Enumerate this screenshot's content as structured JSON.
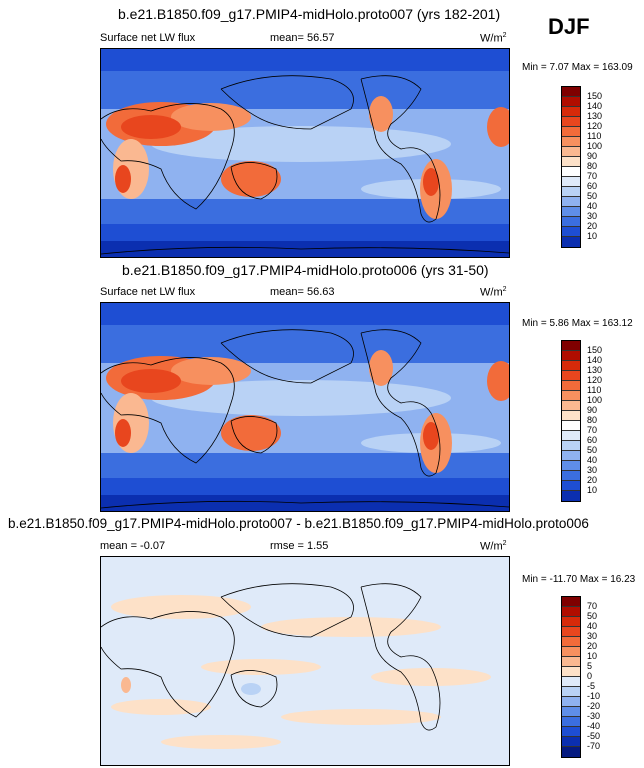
{
  "season": "DJF",
  "panels": [
    {
      "title": "b.e21.B1850.f09_g17.PMIP4-midHolo.proto007 (yrs 182-201)",
      "variable": "Surface net LW flux",
      "mean_label": "mean=  56.57",
      "units": "W/m",
      "units_sup": "2",
      "minmax": "Min =  7.07 Max = 163.09",
      "colorbar": {
        "ticks": [
          "150",
          "140",
          "130",
          "120",
          "110",
          "100",
          "90",
          "80",
          "70",
          "60",
          "50",
          "40",
          "30",
          "20",
          "10"
        ],
        "colors": [
          "#7f0000",
          "#b00d00",
          "#d62a0a",
          "#e8461e",
          "#f26b3a",
          "#f7905f",
          "#fab891",
          "#fde1c8",
          "#ffffff",
          "#dfeaf9",
          "#b9d2f5",
          "#8fb2f0",
          "#5f8ee8",
          "#3b6edf",
          "#1e4ed3",
          "#0b2fb0"
        ]
      }
    },
    {
      "title": "b.e21.B1850.f09_g17.PMIP4-midHolo.proto006 (yrs 31-50)",
      "variable": "Surface net LW flux",
      "mean_label": "mean=  56.63",
      "units": "W/m",
      "units_sup": "2",
      "minmax": "Min =  5.86 Max = 163.12",
      "colorbar": {
        "ticks": [
          "150",
          "140",
          "130",
          "120",
          "110",
          "100",
          "90",
          "80",
          "70",
          "60",
          "50",
          "40",
          "30",
          "20",
          "10"
        ],
        "colors": [
          "#7f0000",
          "#b00d00",
          "#d62a0a",
          "#e8461e",
          "#f26b3a",
          "#f7905f",
          "#fab891",
          "#fde1c8",
          "#ffffff",
          "#dfeaf9",
          "#b9d2f5",
          "#8fb2f0",
          "#5f8ee8",
          "#3b6edf",
          "#1e4ed3",
          "#0b2fb0"
        ]
      }
    },
    {
      "title": "b.e21.B1850.f09_g17.PMIP4-midHolo.proto007 - b.e21.B1850.f09_g17.PMIP4-midHolo.proto006",
      "variable": "mean =  -0.07",
      "mean_label": "rmse =   1.55",
      "units": "W/m",
      "units_sup": "2",
      "minmax": "Min = -11.70 Max =  16.23",
      "colorbar": {
        "ticks": [
          "70",
          "50",
          "40",
          "30",
          "20",
          "10",
          "5",
          "0",
          "-5",
          "-10",
          "-20",
          "-30",
          "-40",
          "-50",
          "-70"
        ],
        "colors": [
          "#7f0000",
          "#b00d00",
          "#d62a0a",
          "#e8461e",
          "#f26b3a",
          "#f7905f",
          "#fab891",
          "#fde1c8",
          "#dfeaf9",
          "#b9d2f5",
          "#8fb2f0",
          "#5f8ee8",
          "#3b6edf",
          "#1e4ed3",
          "#0b2fb0",
          "#051a80"
        ]
      }
    }
  ]
}
